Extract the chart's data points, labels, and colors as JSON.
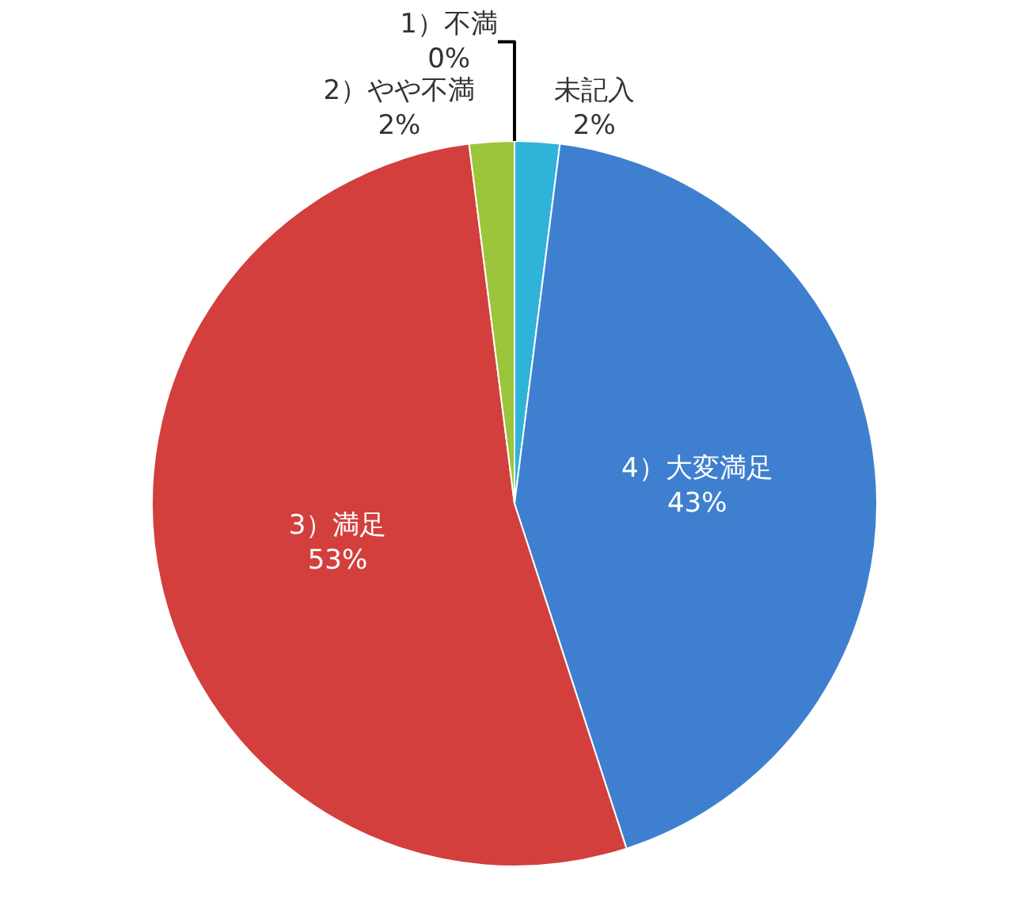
{
  "chart_data": {
    "type": "pie",
    "categories": [
      "未記入",
      "4）大変満足",
      "3）満足",
      "2）やや不満",
      "1）不満"
    ],
    "values": [
      2,
      43,
      53,
      2,
      0
    ],
    "value_labels": [
      "2%",
      "43%",
      "53%",
      "2%",
      "0%"
    ],
    "colors": [
      "#2fb3d8",
      "#3f7fcf",
      "#d23f3c",
      "#9bc53a",
      "#7a5aa0"
    ],
    "legend": false
  }
}
